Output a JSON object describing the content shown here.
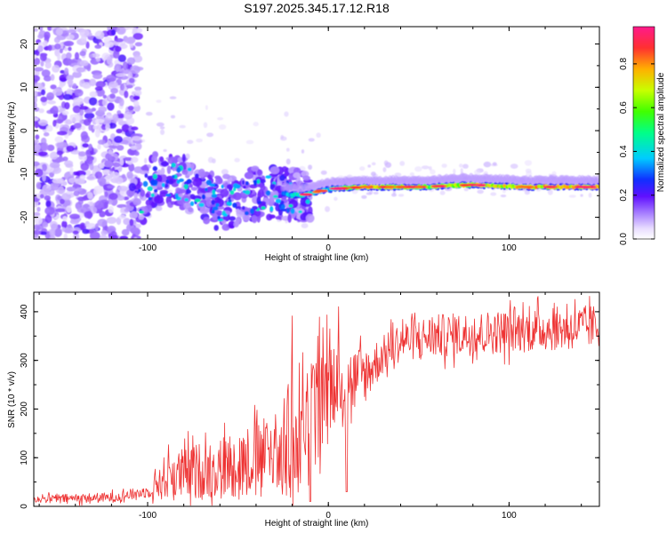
{
  "figure": {
    "title": "S197.2025.345.17.12.R18"
  },
  "chart_data": [
    {
      "type": "heatmap",
      "name": "spectrogram",
      "xlabel": "Height of straight line (km)",
      "ylabel": "Frequency (Hz)",
      "xlim": [
        -163,
        150
      ],
      "ylim": [
        -25,
        24
      ],
      "xticks": [
        -100,
        0,
        100
      ],
      "yticks": [
        -20,
        -10,
        0,
        10,
        20
      ],
      "colorbar": {
        "label": "Normalized spectral amplitude",
        "range": [
          0,
          0.97
        ],
        "ticks": [
          0.0,
          0.2,
          0.4,
          0.6,
          0.8
        ],
        "tick_labels": [
          "0.0",
          "0.2",
          "0.4",
          "0.6",
          "0.8"
        ]
      },
      "ridge": {
        "description_points": [
          {
            "x": -110,
            "y": -19,
            "amp": 0.2
          },
          {
            "x": -95,
            "y": -11,
            "amp": 0.45
          },
          {
            "x": -80,
            "y": -12,
            "amp": 0.3
          },
          {
            "x": -60,
            "y": -17,
            "amp": 0.25
          },
          {
            "x": -35,
            "y": -14,
            "amp": 0.2
          },
          {
            "x": -15,
            "y": -15,
            "amp": 0.6
          },
          {
            "x": 0,
            "y": -13.5,
            "amp": 0.5
          },
          {
            "x": 20,
            "y": -13,
            "amp": 0.9
          },
          {
            "x": 50,
            "y": -13,
            "amp": 0.75
          },
          {
            "x": 80,
            "y": -12.5,
            "amp": 0.85
          },
          {
            "x": 110,
            "y": -13,
            "amp": 0.95
          },
          {
            "x": 150,
            "y": -13,
            "amp": 0.9
          }
        ]
      }
    },
    {
      "type": "line",
      "name": "snr",
      "xlabel": "Height of straight line (km)",
      "ylabel": "SNR (10 * v/v)",
      "xlim": [
        -163,
        150
      ],
      "ylim": [
        0,
        440
      ],
      "xticks": [
        -100,
        0,
        100
      ],
      "yticks": [
        0,
        100,
        200,
        300,
        400
      ],
      "color": "#ee3333",
      "trend": {
        "x": [
          -163,
          -120,
          -100,
          -90,
          -60,
          -30,
          -20,
          -10,
          0,
          10,
          20,
          30,
          40,
          60,
          100,
          150
        ],
        "y": [
          15,
          18,
          30,
          60,
          80,
          110,
          120,
          180,
          230,
          250,
          270,
          310,
          340,
          350,
          360,
          370
        ]
      },
      "noise_amplitude": {
        "x": [
          -163,
          -100,
          -90,
          -30,
          -20,
          0,
          30,
          60,
          150
        ],
        "y": [
          8,
          12,
          50,
          80,
          140,
          100,
          40,
          45,
          45
        ]
      }
    }
  ]
}
